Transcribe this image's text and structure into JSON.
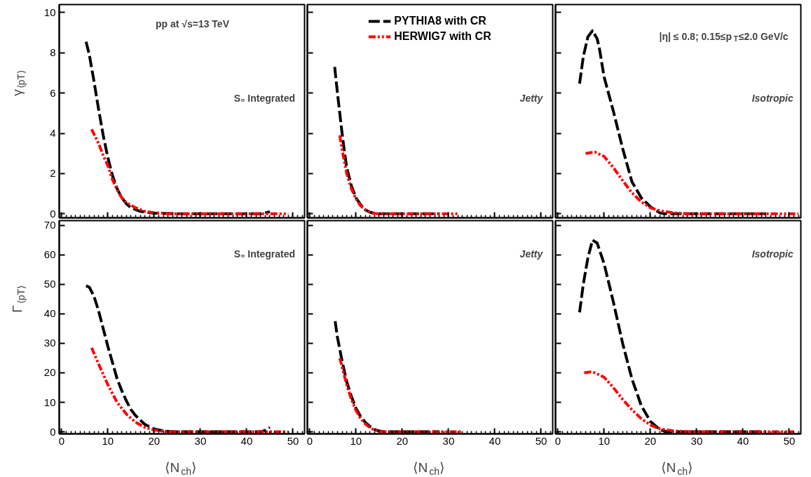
{
  "chart_data": [
    {
      "type": "line",
      "xlim": [
        -0.5,
        52.5
      ],
      "ylim": [
        -0.2,
        10.4
      ],
      "xticks": [
        0,
        10,
        20,
        30,
        40,
        50
      ],
      "yticks": [
        0,
        2,
        4,
        6,
        8,
        10
      ],
      "ylabel": "γ$_{⟨pT⟩}$",
      "tick_labels": "y",
      "grid": false,
      "legend": false,
      "annotations": [
        "pp at √s=13 TeV",
        "S₀ Integrated"
      ],
      "series": [
        {
          "color": "#000000",
          "line_style": "dashed",
          "x": [
            5.3,
            6,
            7,
            8,
            9,
            10,
            11,
            12,
            13,
            14,
            15,
            17,
            20,
            25,
            43,
            44,
            45
          ],
          "values": [
            8.55,
            7.9,
            6.6,
            5.2,
            3.9,
            2.8,
            1.9,
            1.25,
            0.8,
            0.5,
            0.3,
            0.12,
            0.03,
            0,
            0,
            0.05,
            0.1
          ]
        },
        {
          "color": "#ff0000",
          "line_style": "dashdot",
          "x": [
            6.5,
            8,
            9,
            10,
            11,
            12,
            13,
            14,
            16,
            18,
            20,
            24,
            49
          ],
          "values": [
            4.2,
            3.5,
            2.9,
            2.4,
            1.7,
            1.2,
            0.8,
            0.55,
            0.3,
            0.12,
            0.05,
            0,
            0
          ]
        }
      ]
    },
    {
      "type": "line",
      "xlim": [
        -0.5,
        52.5
      ],
      "ylim": [
        -0.2,
        10.4
      ],
      "xticks": [
        0,
        10,
        20,
        30,
        40,
        50
      ],
      "yticks": [
        0,
        2,
        4,
        6,
        8,
        10
      ],
      "tick_labels": false,
      "grid": false,
      "legend": "top",
      "annotations": [
        "Jetty"
      ],
      "series": [
        {
          "name": "PYTHIA8 with CR",
          "color": "#000000",
          "line_style": "dashed",
          "x": [
            5.4,
            6,
            6.5,
            7,
            7.5,
            8,
            9,
            10,
            11,
            12,
            13,
            14,
            15,
            28
          ],
          "values": [
            7.3,
            6.0,
            5.0,
            4.0,
            3.1,
            2.3,
            1.4,
            0.8,
            0.45,
            0.2,
            0.08,
            0.02,
            0,
            0
          ]
        },
        {
          "name": "HERWIG7 with CR",
          "color": "#ff0000",
          "line_style": "dashdot",
          "x": [
            6.5,
            7,
            7.5,
            8,
            9,
            10,
            11,
            12,
            13,
            14,
            15,
            32
          ],
          "values": [
            3.9,
            3.2,
            2.6,
            2.0,
            1.25,
            0.75,
            0.4,
            0.2,
            0.08,
            0.02,
            0,
            0
          ]
        }
      ]
    },
    {
      "type": "line",
      "xlim": [
        -0.5,
        52.5
      ],
      "ylim": [
        -0.2,
        10.4
      ],
      "xticks": [
        0,
        10,
        20,
        30,
        40,
        50
      ],
      "yticks": [
        0,
        2,
        4,
        6,
        8,
        10
      ],
      "tick_labels": false,
      "grid": false,
      "legend": false,
      "annotations": [
        "|η|  ≤ 0.8;  0.15≤p$_{T}$≤2.0 GeV/c",
        "Isotropic"
      ],
      "series": [
        {
          "color": "#000000",
          "line_style": "dashed",
          "x": [
            4.7,
            5.5,
            6.5,
            7.5,
            8.5,
            9,
            10,
            12,
            14,
            16,
            18,
            20,
            22,
            23,
            45
          ],
          "values": [
            6.47,
            7.8,
            8.8,
            9.1,
            8.7,
            8.2,
            6.8,
            5.1,
            3.25,
            1.6,
            0.8,
            0.35,
            0.05,
            0,
            0
          ]
        },
        {
          "color": "#ff0000",
          "line_style": "dashdot",
          "x": [
            6,
            8,
            10,
            12,
            14,
            16,
            18,
            20,
            22,
            25,
            28,
            52
          ],
          "values": [
            3.0,
            3.07,
            2.85,
            2.3,
            1.65,
            1.05,
            0.6,
            0.3,
            0.15,
            0.05,
            0,
            0
          ]
        }
      ]
    },
    {
      "type": "line",
      "xlim": [
        -0.5,
        52.5
      ],
      "ylim": [
        -0.7,
        71.6
      ],
      "xticks": [
        0,
        10,
        20,
        30,
        40,
        50
      ],
      "yticks": [
        0,
        10,
        20,
        30,
        40,
        50,
        60,
        70
      ],
      "xlabel": "⟨N$_{ch}$⟩",
      "ylabel": "Γ$_{⟨pT⟩}$",
      "grid": false,
      "legend": false,
      "annotations": [
        "S₀ Integrated"
      ],
      "series": [
        {
          "color": "#000000",
          "line_style": "dashed",
          "x": [
            5.3,
            6,
            7,
            8,
            9,
            10,
            11,
            12,
            13,
            14,
            15,
            16,
            18,
            20,
            22,
            24,
            43,
            44,
            45
          ],
          "values": [
            49.5,
            49,
            46,
            41,
            35,
            29,
            23.5,
            18,
            14,
            10.5,
            7.5,
            5.5,
            2.5,
            1,
            0.3,
            0,
            0,
            0.5,
            1.5
          ]
        },
        {
          "color": "#ff0000",
          "line_style": "dashdot",
          "x": [
            6.5,
            8,
            10,
            12,
            14,
            16,
            18,
            20,
            22,
            24,
            49
          ],
          "values": [
            28.5,
            23,
            16,
            10,
            6,
            3.2,
            1.5,
            0.6,
            0.2,
            0,
            0
          ]
        }
      ]
    },
    {
      "type": "line",
      "xlim": [
        -0.5,
        52.5
      ],
      "ylim": [
        -0.7,
        71.6
      ],
      "xticks": [
        0,
        10,
        20,
        30,
        40,
        50
      ],
      "yticks": [
        0,
        10,
        20,
        30,
        40,
        50,
        60,
        70
      ],
      "xlabel": "⟨N$_{ch}$⟩",
      "tick_labels": "x",
      "grid": false,
      "legend": false,
      "annotations": [
        "Jetty"
      ],
      "series": [
        {
          "color": "#000000",
          "line_style": "dashed",
          "x": [
            5.5,
            6,
            7,
            8,
            9,
            10,
            11,
            12,
            13,
            14,
            15,
            16,
            28
          ],
          "values": [
            37.5,
            32,
            24,
            17,
            12,
            8,
            5.2,
            3.2,
            1.8,
            0.8,
            0.3,
            0,
            0
          ]
        },
        {
          "color": "#ff0000",
          "line_style": "dashdot",
          "x": [
            6.5,
            7,
            8,
            9,
            10,
            11,
            12,
            13,
            14,
            15,
            16,
            33
          ],
          "values": [
            25,
            22,
            16,
            11,
            7.3,
            4.5,
            2.7,
            1.4,
            0.6,
            0.2,
            0,
            0
          ]
        }
      ]
    },
    {
      "type": "line",
      "xlim": [
        -0.5,
        52.5
      ],
      "ylim": [
        -0.7,
        71.6
      ],
      "xticks": [
        0,
        10,
        20,
        30,
        40,
        50
      ],
      "yticks": [
        0,
        10,
        20,
        30,
        40,
        50,
        60,
        70
      ],
      "xlabel": "⟨N$_{ch}$⟩",
      "tick_labels": "x",
      "grid": false,
      "legend": false,
      "annotations": [
        "Isotropic"
      ],
      "series": [
        {
          "color": "#000000",
          "line_style": "dashed",
          "x": [
            4.7,
            5.5,
            6.5,
            7.5,
            8.5,
            10,
            12,
            14,
            16,
            18,
            20,
            22,
            23.5,
            45
          ],
          "values": [
            40.5,
            50,
            59,
            65,
            64,
            57,
            44,
            30,
            18,
            9,
            3.5,
            0.8,
            0,
            0
          ]
        },
        {
          "color": "#ff0000",
          "line_style": "dashdot",
          "x": [
            5.7,
            7,
            8,
            10,
            12,
            14,
            16,
            18,
            20,
            22,
            25,
            28,
            30,
            51
          ],
          "values": [
            20,
            20.3,
            20,
            18.5,
            15,
            11,
            7.5,
            4.5,
            2.3,
            1,
            0.3,
            0.1,
            0,
            0
          ]
        }
      ]
    }
  ]
}
